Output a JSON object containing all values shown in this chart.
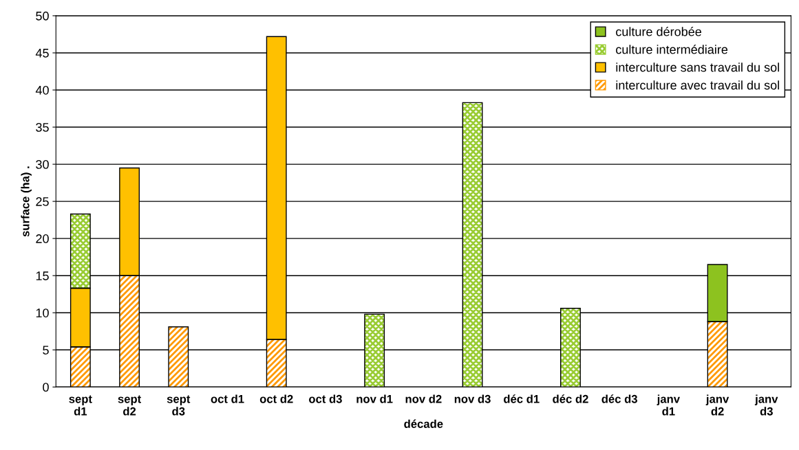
{
  "chart_data": {
    "type": "bar",
    "stacked": true,
    "xlabel": "décade",
    "ylabel": "surface (ha) .",
    "categories": [
      "sept\nd1",
      "sept\nd2",
      "sept\nd3",
      "oct d1",
      "oct d2",
      "oct d3",
      "nov d1",
      "nov d2",
      "nov d3",
      "déc d1",
      "déc d2",
      "déc d3",
      "janv\nd1",
      "janv\nd2",
      "janv\nd3"
    ],
    "series": [
      {
        "name": "interculture avec travail du sol",
        "color": "#ff9900",
        "values": [
          5.4,
          15.0,
          8.1,
          null,
          6.4,
          null,
          null,
          null,
          null,
          null,
          null,
          null,
          null,
          8.8,
          null
        ]
      },
      {
        "name": "interculture sans travail du sol",
        "color": "#ffc000",
        "values": [
          7.9,
          14.5,
          null,
          null,
          40.8,
          null,
          null,
          null,
          null,
          null,
          null,
          null,
          null,
          null,
          null
        ]
      },
      {
        "name": "culture intermédiaire",
        "color": "#99cc33",
        "values": [
          10.0,
          null,
          null,
          null,
          null,
          null,
          9.8,
          null,
          38.3,
          null,
          10.6,
          null,
          null,
          null,
          null
        ]
      },
      {
        "name": "culture dérobée",
        "color": "#8dc21f",
        "values": [
          null,
          null,
          null,
          null,
          null,
          null,
          null,
          null,
          null,
          null,
          null,
          null,
          null,
          7.7,
          null
        ]
      }
    ],
    "ylim": [
      0,
      50
    ],
    "yticks": [
      0,
      5,
      10,
      15,
      20,
      25,
      30,
      35,
      40,
      45,
      50
    ],
    "grid": "y",
    "legend": "top right"
  }
}
